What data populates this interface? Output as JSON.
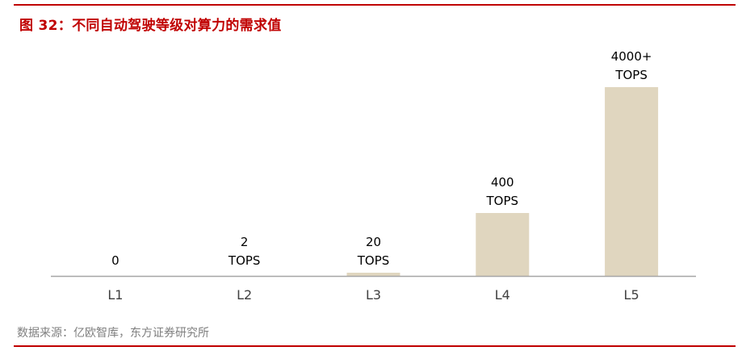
{
  "figure": {
    "title": "图 32：不同自动驾驶等级对算力的需求值",
    "source": "数据来源：亿欧智库，东方证券研究所"
  },
  "chart_data": {
    "type": "bar",
    "title": "",
    "xlabel": "",
    "ylabel": "",
    "categories": [
      "L1",
      "L2",
      "L3",
      "L4",
      "L5"
    ],
    "values": [
      0,
      2,
      20,
      400,
      4000
    ],
    "data_labels": [
      [
        "0"
      ],
      [
        "2",
        "TOPS"
      ],
      [
        "20",
        "TOPS"
      ],
      [
        "400",
        "TOPS"
      ],
      [
        "4000+",
        "TOPS"
      ]
    ],
    "bar_color": "#e0d6bf",
    "axis_color": "#a6a6a6",
    "accent_color": "#c00000",
    "grid": false,
    "legend": "none",
    "y_axis_visible": false
  }
}
